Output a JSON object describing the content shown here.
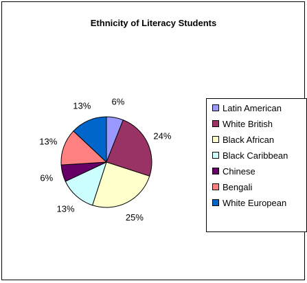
{
  "chart_data": {
    "type": "pie",
    "title": "Ethnicity of Literacy Students",
    "legend_position": "right",
    "slices": [
      {
        "label": "Latin American",
        "value": 6,
        "data_label": "6%",
        "color": "#9999FF"
      },
      {
        "label": "White British",
        "value": 24,
        "data_label": "24%",
        "color": "#993366"
      },
      {
        "label": "Black African",
        "value": 25,
        "data_label": "25%",
        "color": "#FFFFCC"
      },
      {
        "label": "Black Caribbean",
        "value": 13,
        "data_label": "13%",
        "color": "#CCFFFF"
      },
      {
        "label": "Chinese",
        "value": 6,
        "data_label": "6%",
        "color": "#660066"
      },
      {
        "label": "Bengali",
        "value": 13,
        "data_label": "13%",
        "color": "#FF8080"
      },
      {
        "label": "White European",
        "value": 13,
        "data_label": "13%",
        "color": "#0066CC"
      }
    ]
  }
}
